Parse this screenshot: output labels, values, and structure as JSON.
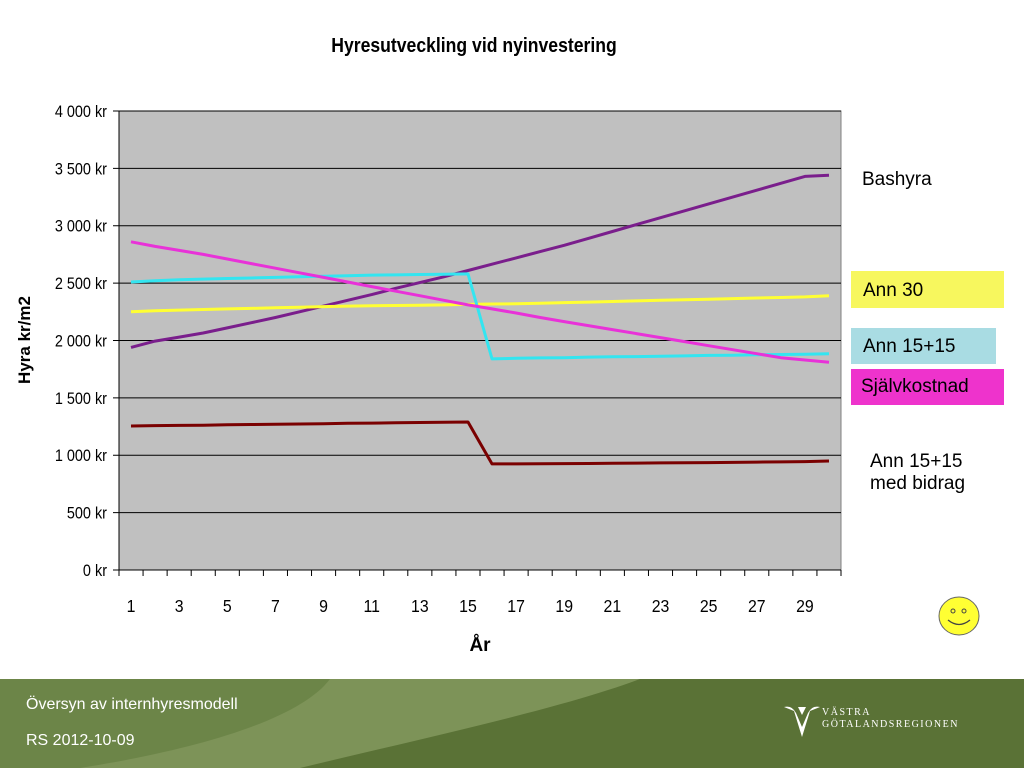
{
  "chart_data": {
    "type": "line",
    "title": "Hyresutveckling vid nyinvestering",
    "xlabel": "År",
    "ylabel": "Hyra kr/m2",
    "ylim": [
      0,
      4000
    ],
    "yticks": [
      "0 kr",
      "500 kr",
      "1 000 kr",
      "1 500 kr",
      "2 000 kr",
      "2 500 kr",
      "3 000 kr",
      "3 500 kr",
      "4 000 kr"
    ],
    "xticks": [
      "1",
      "3",
      "5",
      "7",
      "9",
      "11",
      "13",
      "15",
      "17",
      "19",
      "21",
      "23",
      "25",
      "27",
      "29"
    ],
    "x": [
      1,
      2,
      3,
      4,
      5,
      6,
      7,
      8,
      9,
      10,
      11,
      12,
      13,
      14,
      15,
      16,
      17,
      18,
      19,
      20,
      21,
      22,
      23,
      24,
      25,
      26,
      27,
      28,
      29,
      30
    ],
    "grid": true,
    "series": [
      {
        "name": "Bashyra",
        "color": "#7a1e8c",
        "values": [
          1940,
          1995,
          2030,
          2065,
          2110,
          2155,
          2200,
          2250,
          2300,
          2350,
          2400,
          2455,
          2505,
          2555,
          2610,
          2665,
          2720,
          2775,
          2830,
          2890,
          2950,
          3010,
          3070,
          3130,
          3190,
          3250,
          3310,
          3370,
          3430,
          3440
        ]
      },
      {
        "name": "Ann 30",
        "color": "#ffff33",
        "values": [
          2250,
          2260,
          2265,
          2270,
          2275,
          2280,
          2285,
          2290,
          2295,
          2300,
          2302,
          2305,
          2308,
          2310,
          2315,
          2318,
          2320,
          2325,
          2330,
          2335,
          2340,
          2345,
          2350,
          2355,
          2360,
          2365,
          2370,
          2375,
          2380,
          2390
        ]
      },
      {
        "name": "Ann 15+15",
        "color": "#33e5f0",
        "values": [
          2510,
          2520,
          2530,
          2535,
          2540,
          2545,
          2550,
          2555,
          2560,
          2565,
          2570,
          2572,
          2575,
          2578,
          2580,
          1840,
          1845,
          1848,
          1850,
          1855,
          1858,
          1860,
          1863,
          1866,
          1870,
          1872,
          1875,
          1878,
          1880,
          1885
        ]
      },
      {
        "name": "Självkostnad",
        "color": "#e832d8",
        "values": [
          2860,
          2820,
          2785,
          2750,
          2710,
          2670,
          2630,
          2590,
          2550,
          2510,
          2470,
          2430,
          2390,
          2350,
          2310,
          2275,
          2240,
          2200,
          2165,
          2130,
          2095,
          2060,
          2025,
          1990,
          1955,
          1920,
          1885,
          1850,
          1830,
          1810
        ]
      },
      {
        "name": "Ann 15+15 med bidrag",
        "color": "#7a0000",
        "values": [
          1255,
          1258,
          1260,
          1262,
          1265,
          1268,
          1270,
          1272,
          1275,
          1278,
          1280,
          1283,
          1285,
          1288,
          1290,
          925,
          925,
          926,
          927,
          928,
          930,
          932,
          933,
          935,
          936,
          938,
          940,
          942,
          945,
          950
        ]
      }
    ]
  },
  "legend": [
    {
      "label": "Bashyra",
      "bg": ""
    },
    {
      "label": "Ann 30",
      "bg": "#f7f75e"
    },
    {
      "label": "Ann 15+15",
      "bg": "#a9dce3"
    },
    {
      "label": "Självkostnad",
      "bg": "#ee33cc"
    },
    {
      "label_line1": "Ann 15+15",
      "label_line2": "med bidrag",
      "bg": ""
    }
  ],
  "footer": {
    "line1": "Översyn av internhyresmodell",
    "line2": "RS  2012-10-09",
    "logo_line1": "VÄSTRA",
    "logo_line2": "GÖTALANDSREGIONEN",
    "logo_icon": "vgr-logo-icon"
  },
  "decoration": {
    "smiley": "smiley-icon",
    "smiley_color": "#ffff33"
  }
}
